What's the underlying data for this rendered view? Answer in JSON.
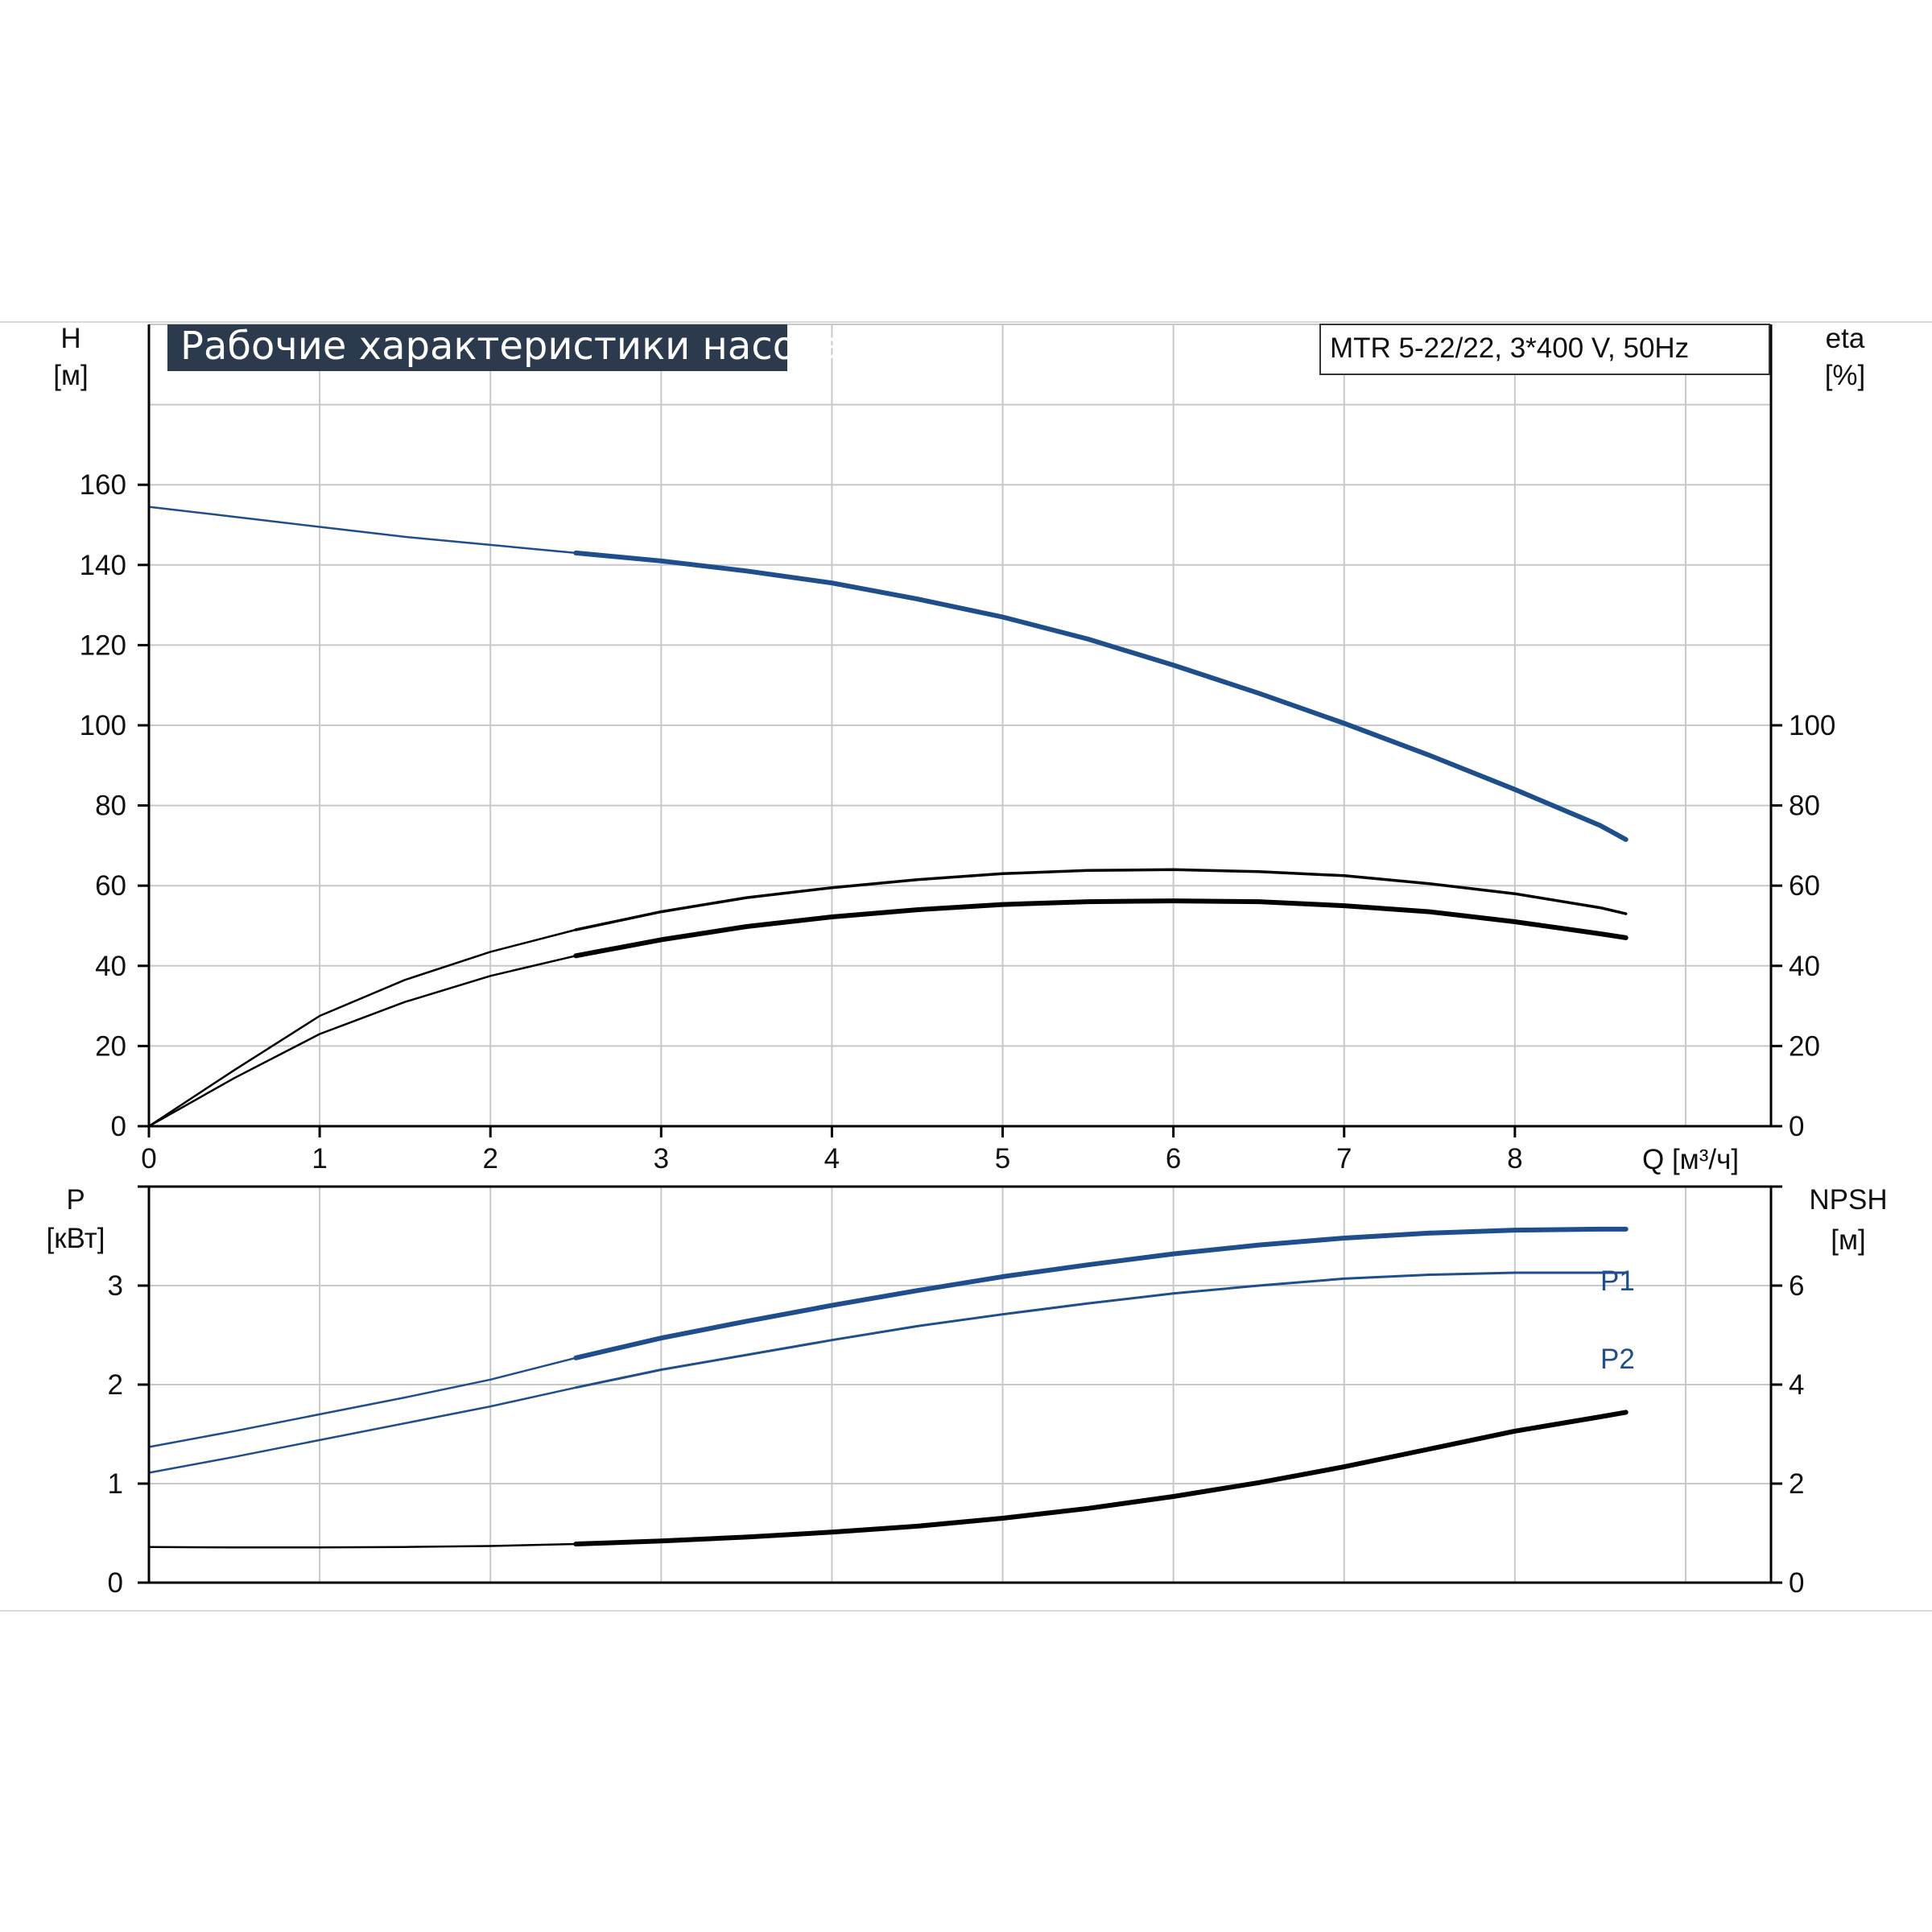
{
  "chart_data": [
    {
      "type": "line",
      "title": "Рабочие характеристики насоса",
      "subtitle": "MTR 5-22/22, 3*400 V, 50Hz",
      "xlabel": "Q [м³/ч]",
      "ylabel_top": "H",
      "ylabel_unit": "[м]",
      "y2label_top": "eta",
      "y2label_unit": "[%]",
      "xlim": [
        0,
        9.5
      ],
      "ylim": [
        0,
        200
      ],
      "y2lim": [
        0,
        200
      ],
      "x_ticks": [
        "0",
        "1",
        "2",
        "3",
        "4",
        "5",
        "6",
        "7",
        "8"
      ],
      "y_ticks": [
        "0",
        "20",
        "40",
        "60",
        "80",
        "100",
        "120",
        "140",
        "160"
      ],
      "y2_ticks": [
        "0",
        "20",
        "40",
        "60",
        "80",
        "100"
      ],
      "grid": true,
      "series": [
        {
          "name": "H",
          "axis": "left",
          "color": "#1f4e8c",
          "x": [
            0,
            0.5,
            1,
            1.5,
            2,
            2.5,
            3,
            3.5,
            4,
            4.5,
            5,
            5.5,
            6,
            6.5,
            7,
            7.5,
            8,
            8.5,
            8.65
          ],
          "y": [
            154.5,
            152,
            149.5,
            147,
            145,
            143,
            141,
            138.5,
            135.5,
            131.5,
            127,
            121.5,
            115,
            108,
            100.5,
            92.5,
            84,
            75,
            71.5
          ]
        },
        {
          "name": "eta",
          "axis": "right",
          "color": "#000000",
          "x": [
            0,
            0.5,
            1,
            1.5,
            2,
            2.5,
            3,
            3.5,
            4,
            4.5,
            5,
            5.5,
            6,
            6.5,
            7,
            7.5,
            8,
            8.5,
            8.65
          ],
          "y": [
            0,
            14,
            27.5,
            36.5,
            43.5,
            49,
            53.5,
            57,
            59.5,
            61.5,
            63,
            63.8,
            64,
            63.5,
            62.5,
            60.5,
            58,
            54.5,
            53
          ]
        },
        {
          "name": "etaMotor",
          "axis": "right",
          "color": "#000000",
          "x": [
            0,
            0.5,
            1,
            1.5,
            2,
            2.5,
            3,
            3.5,
            4,
            4.5,
            5,
            5.5,
            6,
            6.5,
            7,
            7.5,
            8,
            8.5,
            8.65
          ],
          "y": [
            0,
            12,
            23,
            31,
            37.5,
            42.5,
            46.5,
            49.8,
            52.2,
            54,
            55.3,
            56,
            56.2,
            56,
            55,
            53.5,
            51,
            48,
            47
          ]
        }
      ]
    },
    {
      "type": "line",
      "xlabel": "",
      "ylabel_top": "P",
      "ylabel_unit": "[кВт]",
      "y2label_top": "NPSH",
      "y2label_unit": "[м]",
      "xlim": [
        0,
        9.5
      ],
      "ylim": [
        0,
        4
      ],
      "y2lim": [
        0,
        8
      ],
      "y_ticks": [
        "0",
        "1",
        "2",
        "3"
      ],
      "y2_ticks": [
        "0",
        "2",
        "4",
        "6"
      ],
      "grid": true,
      "series": [
        {
          "name": "P1",
          "axis": "left",
          "color": "#1f4e8c",
          "label": "P1",
          "x": [
            0,
            0.5,
            1,
            1.5,
            2,
            2.5,
            3,
            3.5,
            4,
            4.5,
            5,
            5.5,
            6,
            6.5,
            7,
            7.5,
            8,
            8.5,
            8.65
          ],
          "y": [
            1.37,
            1.53,
            1.7,
            1.87,
            2.05,
            2.27,
            2.47,
            2.64,
            2.8,
            2.95,
            3.09,
            3.21,
            3.32,
            3.41,
            3.48,
            3.53,
            3.56,
            3.57,
            3.57
          ]
        },
        {
          "name": "P2",
          "axis": "left",
          "color": "#1f4e8c",
          "label": "P2",
          "x": [
            0,
            0.5,
            1,
            1.5,
            2,
            2.5,
            3,
            3.5,
            4,
            4.5,
            5,
            5.5,
            6,
            6.5,
            7,
            7.5,
            8,
            8.5,
            8.65
          ],
          "y": [
            1.11,
            1.27,
            1.44,
            1.61,
            1.78,
            1.97,
            2.15,
            2.3,
            2.45,
            2.59,
            2.71,
            2.82,
            2.92,
            3.0,
            3.07,
            3.11,
            3.13,
            3.13,
            3.13
          ]
        },
        {
          "name": "NPSH",
          "axis": "right",
          "color": "#000000",
          "x": [
            0,
            0.5,
            1,
            1.5,
            2,
            2.5,
            3,
            3.5,
            4,
            4.5,
            5,
            5.5,
            6,
            6.5,
            7,
            7.5,
            8,
            8.5,
            8.65
          ],
          "y": [
            0.72,
            0.71,
            0.71,
            0.72,
            0.74,
            0.78,
            0.84,
            0.92,
            1.02,
            1.14,
            1.3,
            1.5,
            1.74,
            2.02,
            2.34,
            2.7,
            3.06,
            3.35,
            3.44
          ]
        }
      ]
    }
  ]
}
